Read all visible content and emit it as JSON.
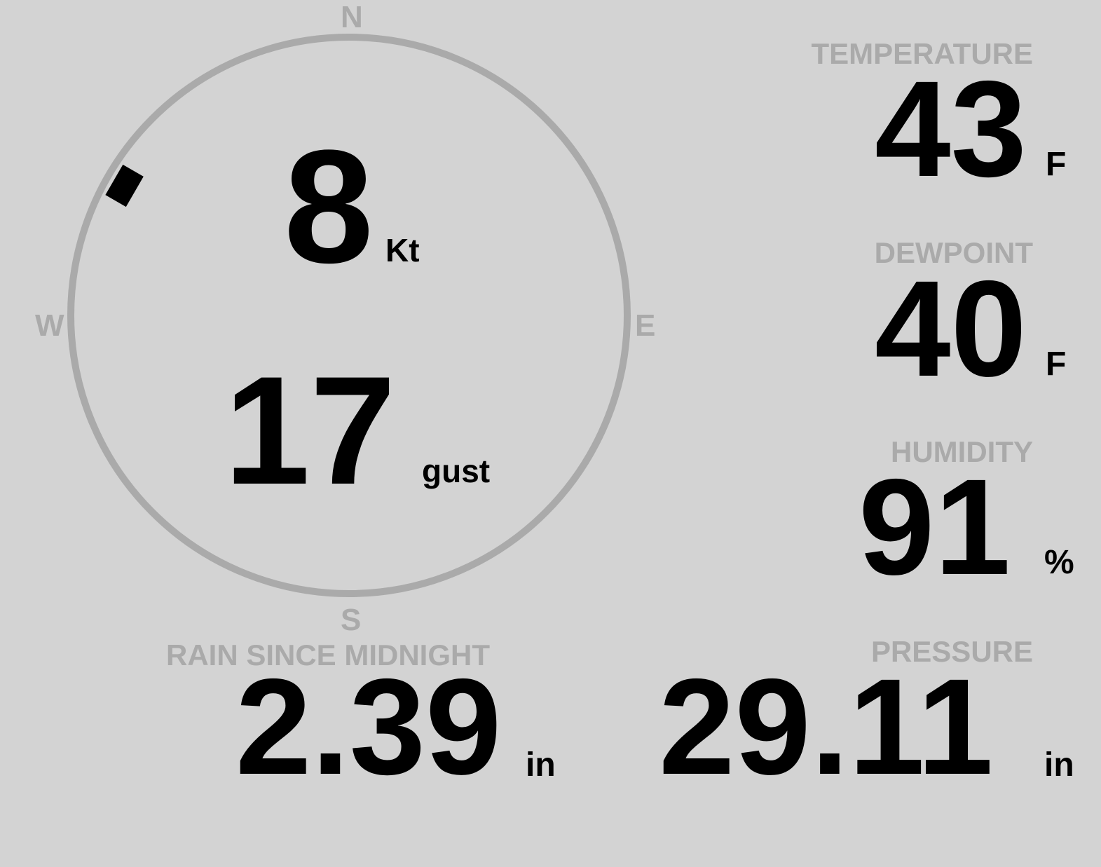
{
  "wind": {
    "speed": "8",
    "speed_unit": "Kt",
    "gust": "17",
    "gust_label": "gust",
    "direction_deg": 300,
    "compass": {
      "n": "N",
      "e": "E",
      "s": "S",
      "w": "W"
    }
  },
  "temperature": {
    "label": "TEMPERATURE",
    "value": "43",
    "unit": "F"
  },
  "dewpoint": {
    "label": "DEWPOINT",
    "value": "40",
    "unit": "F"
  },
  "humidity": {
    "label": "HUMIDITY",
    "value": "91",
    "unit": "%"
  },
  "rain": {
    "label": "RAIN SINCE MIDNIGHT",
    "value": "2.39",
    "unit": "in"
  },
  "pressure": {
    "label": "PRESSURE",
    "value": "29.11",
    "unit": "in"
  },
  "colors": {
    "background": "#d3d3d3",
    "label": "#aaaaaa",
    "value": "#000000",
    "ring": "#aaaaaa"
  }
}
